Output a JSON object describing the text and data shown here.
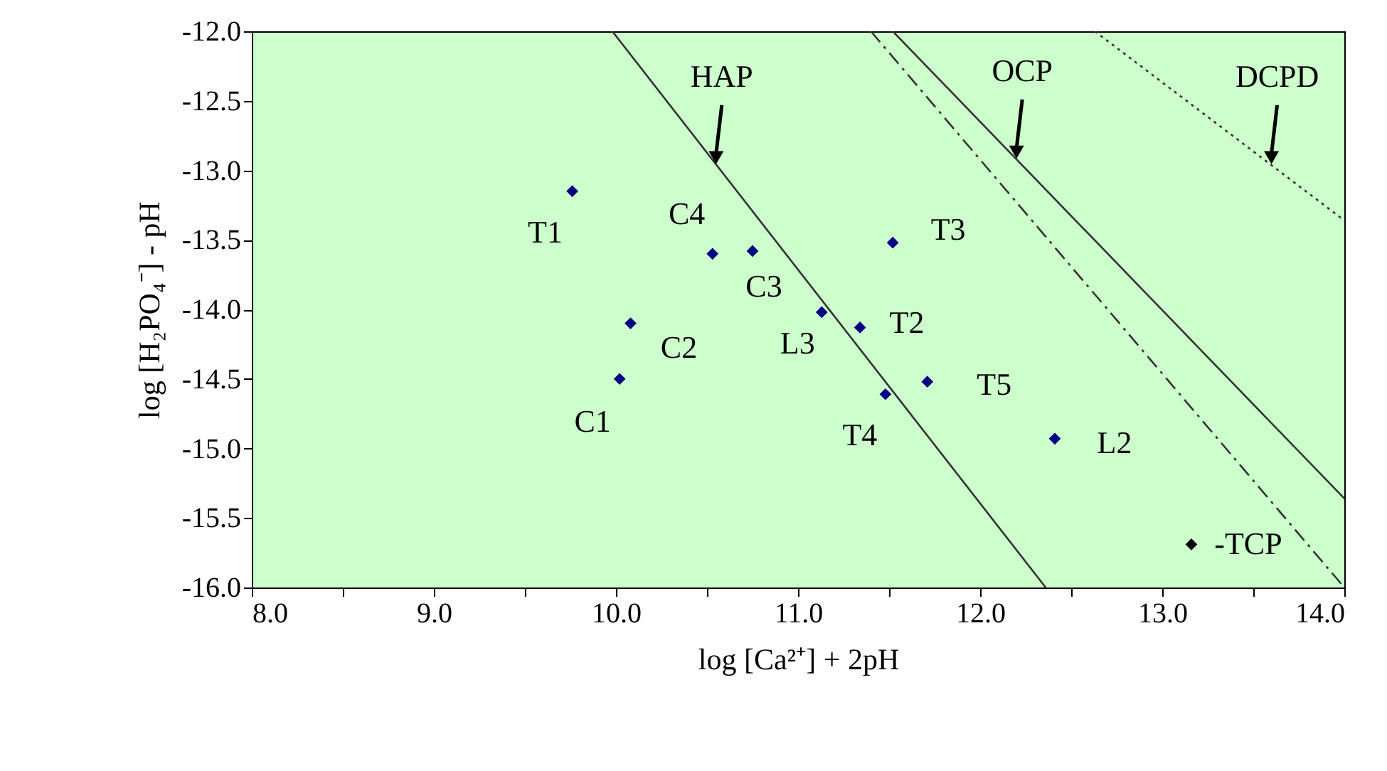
{
  "chart_data": {
    "type": "scatter",
    "xlabel": "log [Ca²⁺] + 2pH",
    "ylabel": "log [H₂PO₄⁻] - pH",
    "xlim": [
      8,
      14
    ],
    "ylim": [
      -16,
      -12
    ],
    "xticks": [
      {
        "value": 8,
        "label": "8.0"
      },
      {
        "value": 8.5,
        "label": null
      },
      {
        "value": 9,
        "label": "9.0"
      },
      {
        "value": 9.5,
        "label": null
      },
      {
        "value": 10,
        "label": "10.0"
      },
      {
        "value": 10.5,
        "label": null
      },
      {
        "value": 11,
        "label": "11.0"
      },
      {
        "value": 11.5,
        "label": null
      },
      {
        "value": 12,
        "label": "12.0"
      },
      {
        "value": 12.5,
        "label": null
      },
      {
        "value": 13,
        "label": "13.0"
      },
      {
        "value": 13.5,
        "label": null
      },
      {
        "value": 14,
        "label": "14.0"
      }
    ],
    "yticks": [
      {
        "value": -12,
        "label": "-12.0"
      },
      {
        "value": -12.5,
        "label": "-12.5"
      },
      {
        "value": -13,
        "label": "-13.0"
      },
      {
        "value": -13.5,
        "label": "-13.5"
      },
      {
        "value": -14,
        "label": "-14.0"
      },
      {
        "value": -14.5,
        "label": "-14.5"
      },
      {
        "value": -15,
        "label": "-15.0"
      },
      {
        "value": -15.5,
        "label": "-15.5"
      },
      {
        "value": -16,
        "label": "-16.0"
      }
    ],
    "grid": false,
    "series": [
      {
        "marker": "diamond",
        "color": "#000080",
        "x": [
          9.76,
          10.53,
          10.75,
          10.08,
          10.02,
          11.13,
          11.34,
          11.52,
          11.48,
          11.71,
          12.41
        ],
        "values": [
          -13.15,
          -13.6,
          -13.58,
          -14.1,
          -14.5,
          -14.02,
          -14.13,
          -13.52,
          -14.61,
          -14.52,
          -14.93
        ],
        "value_labels": [
          "T1",
          "C4",
          "C3",
          "C2",
          "C1",
          "L3",
          "T2",
          "T3",
          "T4",
          "T5",
          "L2"
        ]
      },
      {
        "marker": "diamond",
        "color": "#000000",
        "x": [
          13.16
        ],
        "values": [
          -15.69
        ],
        "value_labels": [
          "-TCP"
        ]
      },
      {
        "type": "line",
        "color": "#333333",
        "line_style": "solid",
        "x": [
          9.98,
          12.36
        ],
        "values": [
          -12,
          -16
        ]
      },
      {
        "type": "line",
        "color": "#333333",
        "line_style": "solid",
        "x": [
          11.52,
          14.0
        ],
        "values": [
          -12,
          -15.36
        ]
      },
      {
        "type": "line",
        "color": "#333333",
        "line_style": "dashed",
        "x": [
          11.4,
          14.0
        ],
        "values": [
          -12,
          -16
        ]
      },
      {
        "type": "line",
        "color": "#333333",
        "line_style": "dotted",
        "x": [
          12.63,
          14.0
        ],
        "values": [
          -12,
          -13.36
        ]
      }
    ],
    "annotations": [
      {
        "text": "HAP",
        "x": 10.55,
        "y": -12.96
      },
      {
        "text": "OCP",
        "x": 12.2,
        "y": -12.92
      },
      {
        "text": "DCPD",
        "x": 13.6,
        "y": -12.96
      }
    ]
  }
}
